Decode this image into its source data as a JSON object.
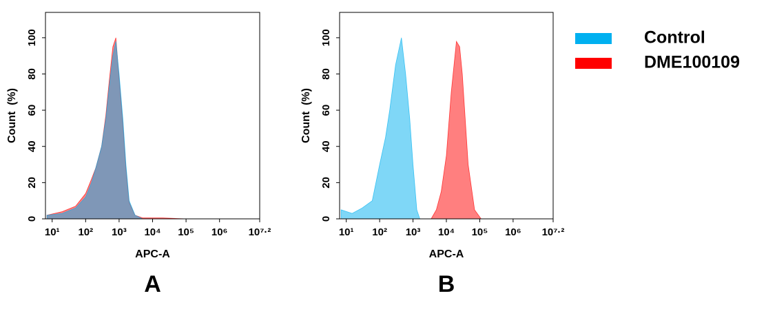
{
  "chart_data": [
    {
      "type": "area",
      "panel_label": "A",
      "x_label": "APC-A",
      "y_label": "Count  (%)",
      "xscale": "log",
      "xlim": [
        6.31,
        15848932
      ],
      "ylim": [
        0,
        114
      ],
      "xticks": [
        {
          "value": 10,
          "label": "10¹"
        },
        {
          "value": 100,
          "label": "10²"
        },
        {
          "value": 1000,
          "label": "10³"
        },
        {
          "value": 10000,
          "label": "10⁴"
        },
        {
          "value": 100000,
          "label": "10⁵"
        },
        {
          "value": 1000000,
          "label": "10⁶"
        },
        {
          "value": 15848932,
          "label": "10⁷·²"
        }
      ],
      "yticks": [
        0,
        20,
        40,
        60,
        80,
        100
      ],
      "series": [
        {
          "color": "#ff0000",
          "x": [
            7,
            20,
            50,
            100,
            150,
            200,
            300,
            400,
            500,
            650,
            800,
            1000,
            1300,
            1600,
            2000,
            3000,
            5000,
            20000,
            100000
          ],
          "values": [
            2,
            4,
            7,
            14,
            22,
            28,
            40,
            57,
            75,
            95,
            100,
            78,
            52,
            28,
            9,
            2,
            0.5,
            0.5,
            0
          ]
        },
        {
          "color": "#00b0f0",
          "x": [
            7,
            20,
            50,
            100,
            150,
            200,
            300,
            400,
            500,
            650,
            800,
            1000,
            1300,
            1600,
            2000,
            3000,
            5000,
            20000,
            100000
          ],
          "values": [
            2,
            3,
            6,
            12,
            20,
            28,
            40,
            55,
            72,
            90,
            98,
            80,
            55,
            30,
            10,
            2,
            0,
            0,
            0
          ]
        }
      ]
    },
    {
      "type": "area",
      "panel_label": "B",
      "x_label": "APC-A",
      "y_label": "Count  (%)",
      "xscale": "log",
      "xlim": [
        6.31,
        15848932
      ],
      "ylim": [
        0,
        114
      ],
      "xticks": [
        {
          "value": 10,
          "label": "10¹"
        },
        {
          "value": 100,
          "label": "10²"
        },
        {
          "value": 1000,
          "label": "10³"
        },
        {
          "value": 10000,
          "label": "10⁴"
        },
        {
          "value": 100000,
          "label": "10⁵"
        },
        {
          "value": 1000000,
          "label": "10⁶"
        },
        {
          "value": 15848932,
          "label": "10⁷·²"
        }
      ],
      "yticks": [
        0,
        20,
        40,
        60,
        80,
        100
      ],
      "series": [
        {
          "name": "Control",
          "color": "#00b0f0",
          "x": [
            7,
            15,
            30,
            60,
            100,
            150,
            200,
            300,
            450,
            600,
            800,
            1000,
            1300,
            1600
          ],
          "values": [
            5,
            3,
            6,
            10,
            30,
            45,
            60,
            85,
            100,
            80,
            55,
            30,
            5,
            0
          ]
        },
        {
          "name": "DME100109",
          "color": "#ff0000",
          "x": [
            3500,
            5000,
            7000,
            10000,
            14000,
            20000,
            25000,
            30000,
            45000,
            70000,
            110000
          ],
          "values": [
            0,
            5,
            15,
            35,
            70,
            98,
            95,
            80,
            30,
            5,
            0
          ]
        }
      ]
    }
  ]
}
